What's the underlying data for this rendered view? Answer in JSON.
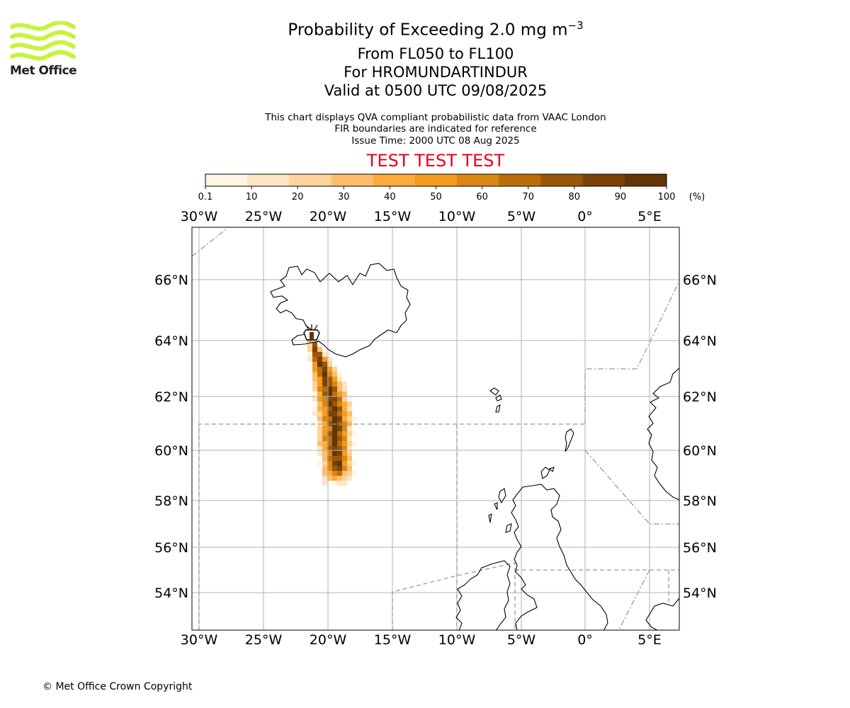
{
  "logo": {
    "text": "Met Office",
    "color": "#c6f43c"
  },
  "title": {
    "main_prefix": "Probability of Exceeding 2.0 mg m",
    "main_superscript": "−3",
    "levels": "From FL050 to FL100",
    "volcano": "For HROMUNDARTINDUR",
    "valid": "Valid at 0500 UTC 09/08/2025"
  },
  "notes": {
    "line1": "This chart displays QVA compliant probabilistic data from VAAC London",
    "line2": "FIR boundaries are indicated for reference",
    "line3": "Issue Time: 2000 UTC 08 Aug 2025"
  },
  "test_banner": {
    "text": "TEST TEST TEST",
    "color": "#e8001c"
  },
  "colorbar": {
    "ticks": [
      "0.1",
      "10",
      "20",
      "30",
      "40",
      "50",
      "60",
      "70",
      "80",
      "90",
      "100"
    ],
    "unit": "(%)",
    "colors": [
      "#fff5e5",
      "#fee6c4",
      "#fed39c",
      "#fdbe6b",
      "#fbab3a",
      "#f59b1e",
      "#d98712",
      "#bb6f0b",
      "#9a5707",
      "#7b4307",
      "#633408"
    ]
  },
  "map": {
    "lon_labels": [
      "30°W",
      "25°W",
      "20°W",
      "15°W",
      "10°W",
      "5°W",
      "0°",
      "5°E"
    ],
    "lat_labels": [
      "66°N",
      "64°N",
      "62°N",
      "60°N",
      "58°N",
      "56°N",
      "54°N"
    ],
    "volcano_marker": "volcano-icon",
    "grid": "on"
  },
  "copyright": "© Met Office Crown Copyright"
}
